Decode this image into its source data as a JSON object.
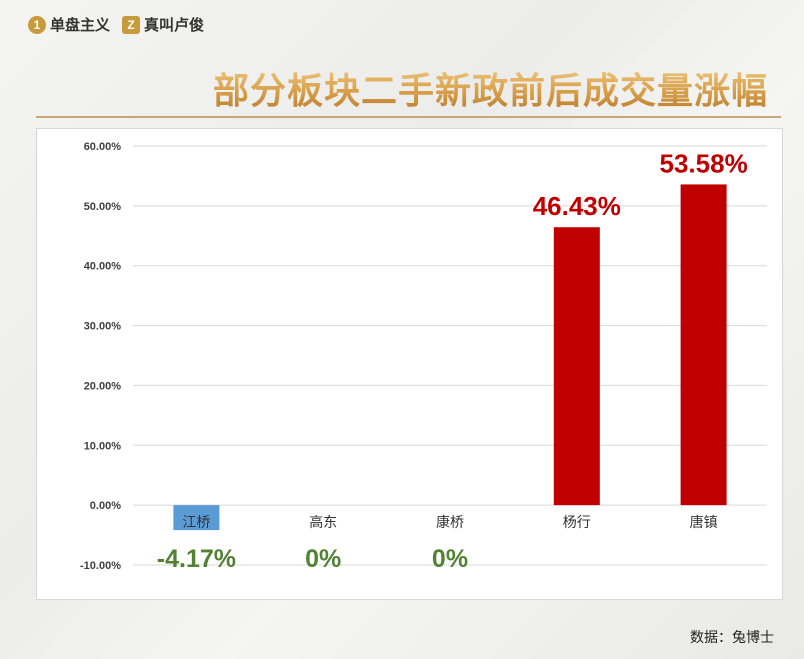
{
  "brand": {
    "left_logo_glyph": "1",
    "left_name": "单盘主义",
    "right_logo_glyph": "Z",
    "right_name": "真叫卢俊"
  },
  "title": "部分板块二手新政前后成交量涨幅",
  "source": "数据：兔博士",
  "colors": {
    "positive": "#c00000",
    "negative_bar": "#5b9bd5",
    "negative_label": "#548235",
    "title_gold": "#d9a24c"
  },
  "chart_data": {
    "type": "bar",
    "title": "",
    "xlabel": "",
    "ylabel": "",
    "ylim": [
      -10,
      60
    ],
    "yticks": [
      -10,
      0,
      10,
      20,
      30,
      40,
      50,
      60
    ],
    "ytick_labels": [
      "-10.00%",
      "0.00%",
      "10.00%",
      "20.00%",
      "30.00%",
      "40.00%",
      "50.00%",
      "60.00%"
    ],
    "grid": true,
    "categories": [
      "江桥",
      "高东",
      "康桥",
      "杨行",
      "唐镇"
    ],
    "values": [
      -4.17,
      0,
      0,
      46.43,
      53.58
    ],
    "data_labels": [
      "-4.17%",
      "0%",
      "0%",
      "46.43%",
      "53.58%"
    ]
  }
}
